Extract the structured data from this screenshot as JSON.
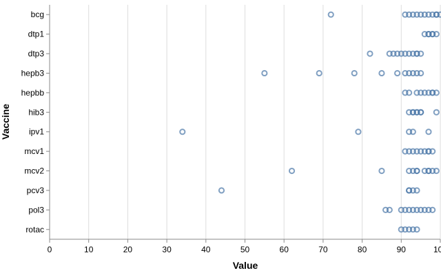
{
  "chart_data": {
    "type": "scatter",
    "xlabel": "Value",
    "ylabel": "Vaccine",
    "xlim": [
      0,
      100
    ],
    "xticks": [
      0,
      10,
      20,
      30,
      40,
      50,
      60,
      70,
      80,
      90,
      100
    ],
    "grid": true,
    "color": "#4c78a8",
    "categories": [
      "bcg",
      "dtp1",
      "dtp3",
      "hepb3",
      "hepbb",
      "hib3",
      "ipv1",
      "mcv1",
      "mcv2",
      "pcv3",
      "pol3",
      "rotac"
    ],
    "series": [
      {
        "category": "bcg",
        "values": [
          72,
          91,
          92,
          93,
          94,
          95,
          96,
          97,
          98,
          99,
          99,
          100
        ]
      },
      {
        "category": "dtp1",
        "values": [
          96,
          97,
          97,
          98,
          98,
          99
        ]
      },
      {
        "category": "dtp3",
        "values": [
          82,
          87,
          88,
          89,
          90,
          91,
          92,
          93,
          94,
          94,
          95
        ]
      },
      {
        "category": "hepb3",
        "values": [
          55,
          69,
          78,
          85,
          89,
          91,
          92,
          93,
          94,
          95
        ]
      },
      {
        "category": "hepbb",
        "values": [
          91,
          92,
          94,
          95,
          96,
          97,
          98,
          98,
          99
        ]
      },
      {
        "category": "hib3",
        "values": [
          92,
          93,
          93,
          94,
          94,
          95,
          95,
          99
        ]
      },
      {
        "category": "ipv1",
        "values": [
          34,
          79,
          92,
          93,
          97
        ]
      },
      {
        "category": "mcv1",
        "values": [
          91,
          92,
          93,
          94,
          95,
          96,
          97,
          97,
          98
        ]
      },
      {
        "category": "mcv2",
        "values": [
          62,
          85,
          92,
          93,
          94,
          94,
          96,
          97,
          97,
          98,
          99
        ]
      },
      {
        "category": "pcv3",
        "values": [
          44,
          92,
          92,
          93,
          94
        ]
      },
      {
        "category": "pol3",
        "values": [
          86,
          87,
          90,
          91,
          92,
          93,
          94,
          95,
          96,
          97,
          98
        ]
      },
      {
        "category": "rotac",
        "values": [
          90,
          91,
          92,
          93,
          94
        ]
      }
    ]
  }
}
